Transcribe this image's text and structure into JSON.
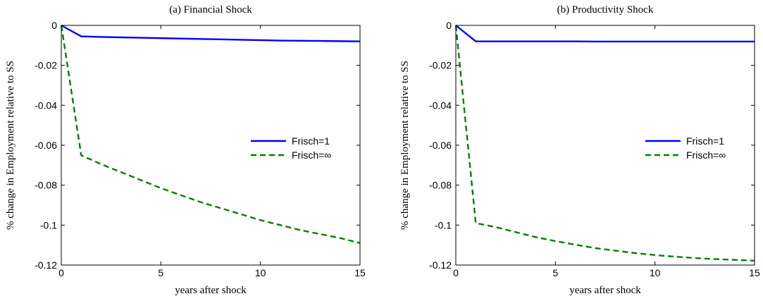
{
  "chart_data": [
    {
      "type": "line",
      "title": "(a) Financial Shock",
      "xlabel": "years after shock",
      "ylabel": "% change in Employment relative to SS",
      "xlim": [
        0,
        15
      ],
      "ylim": [
        -0.12,
        0
      ],
      "xticks": [
        0,
        5,
        10,
        15
      ],
      "yticks": [
        0,
        -0.02,
        -0.04,
        -0.06,
        -0.08,
        -0.1,
        -0.12
      ],
      "xtick_labels": [
        "0",
        "5",
        "10",
        "15"
      ],
      "ytick_labels": [
        "0",
        "-0.02",
        "-0.04",
        "-0.06",
        "-0.08",
        "-0.1",
        "-0.12"
      ],
      "grid": false,
      "legend_position": "right",
      "series": [
        {
          "name": "Frisch=1",
          "color": "#0000ff",
          "style": "solid",
          "x": [
            0,
            1,
            2,
            3,
            4,
            5,
            6,
            7,
            8,
            9,
            10,
            11,
            12,
            13,
            14,
            15
          ],
          "y": [
            0,
            -0.0055,
            -0.0058,
            -0.006,
            -0.0062,
            -0.0064,
            -0.0066,
            -0.0068,
            -0.007,
            -0.0072,
            -0.0074,
            -0.0076,
            -0.0077,
            -0.0078,
            -0.0079,
            -0.008
          ]
        },
        {
          "name": "Frisch=∞",
          "color": "#008000",
          "style": "dashed",
          "x": [
            0,
            1,
            2,
            3,
            4,
            5,
            6,
            7,
            8,
            9,
            10,
            11,
            12,
            13,
            14,
            15
          ],
          "y": [
            0,
            -0.065,
            -0.0695,
            -0.0735,
            -0.0775,
            -0.0815,
            -0.085,
            -0.0885,
            -0.0915,
            -0.0945,
            -0.0975,
            -0.1,
            -0.1025,
            -0.1045,
            -0.1065,
            -0.109
          ]
        }
      ]
    },
    {
      "type": "line",
      "title": "(b) Productivity Shock",
      "xlabel": "years after shock",
      "ylabel": "% change in Employment relative to SS",
      "xlim": [
        0,
        15
      ],
      "ylim": [
        -0.12,
        0
      ],
      "xticks": [
        0,
        5,
        10,
        15
      ],
      "yticks": [
        0,
        -0.02,
        -0.04,
        -0.06,
        -0.08,
        -0.1,
        -0.12
      ],
      "xtick_labels": [
        "0",
        "5",
        "10",
        "15"
      ],
      "ytick_labels": [
        "0",
        "-0.02",
        "-0.04",
        "-0.06",
        "-0.08",
        "-0.1",
        "-0.12"
      ],
      "grid": false,
      "legend_position": "right",
      "series": [
        {
          "name": "Frisch=1",
          "color": "#0000ff",
          "style": "solid",
          "x": [
            0,
            1,
            2,
            3,
            4,
            5,
            6,
            7,
            8,
            9,
            10,
            11,
            12,
            13,
            14,
            15
          ],
          "y": [
            0,
            -0.008,
            -0.008,
            -0.008,
            -0.008,
            -0.008,
            -0.008,
            -0.0081,
            -0.0081,
            -0.0081,
            -0.0081,
            -0.0081,
            -0.0081,
            -0.0081,
            -0.0081,
            -0.0081
          ]
        },
        {
          "name": "Frisch=∞",
          "color": "#008000",
          "style": "dashed",
          "x": [
            0,
            1,
            2,
            3,
            4,
            5,
            6,
            7,
            8,
            9,
            10,
            11,
            12,
            13,
            14,
            15
          ],
          "y": [
            0,
            -0.099,
            -0.101,
            -0.1035,
            -0.106,
            -0.108,
            -0.1098,
            -0.1115,
            -0.1128,
            -0.114,
            -0.115,
            -0.1158,
            -0.1165,
            -0.117,
            -0.1174,
            -0.1178
          ]
        }
      ]
    }
  ]
}
